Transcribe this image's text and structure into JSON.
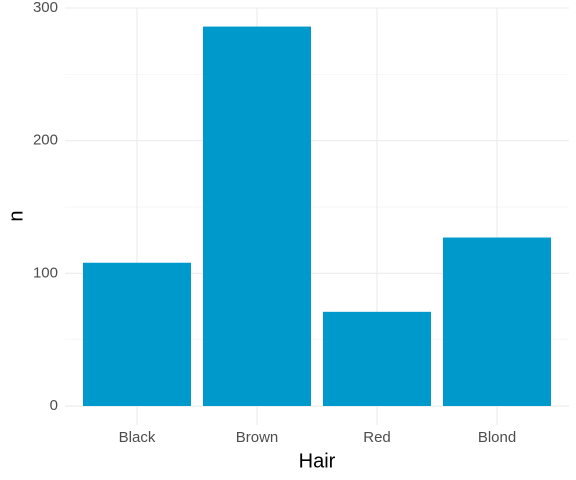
{
  "chart_data": {
    "type": "bar",
    "x_label": "Hair",
    "y_label": "n",
    "categories": [
      "Black",
      "Brown",
      "Red",
      "Blond"
    ],
    "values": [
      108,
      286,
      71,
      127
    ],
    "color": "#0099cc",
    "ylim": [
      -14.3,
      300.3
    ],
    "yticks": [
      0,
      100,
      200,
      300
    ],
    "grid": true
  }
}
